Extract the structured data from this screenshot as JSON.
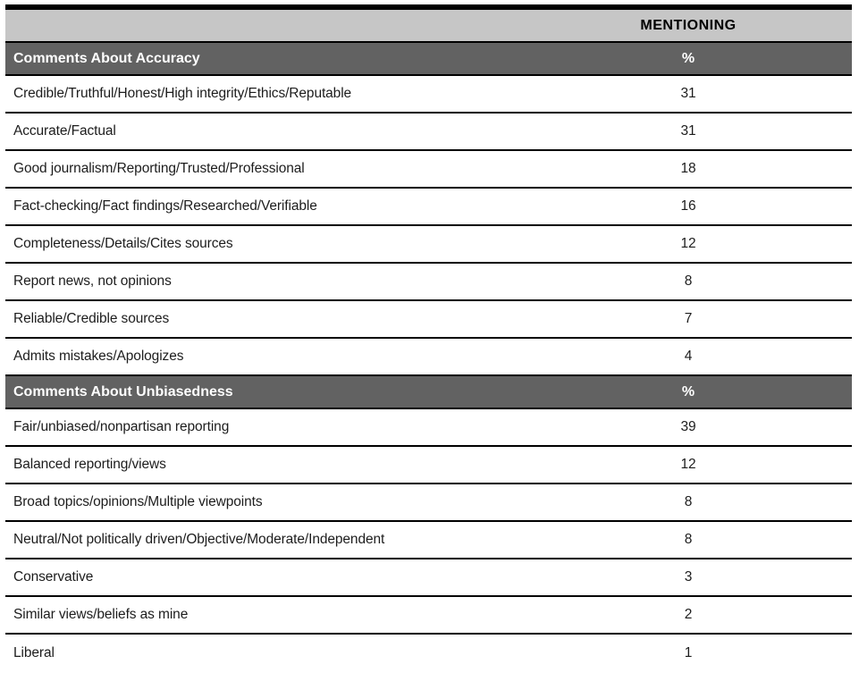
{
  "colors": {
    "light_band_bg": "#c6c6c6",
    "dark_band_bg": "#626262",
    "rule_color": "#000000",
    "row_text": "#1d1d1d",
    "header_text_on_dark": "#ffffff"
  },
  "chart_data": {
    "type": "table",
    "column_header": "MENTIONING",
    "value_unit": "%",
    "layout": {
      "top_border": "thick black",
      "row_separators": "thin black full-width rules",
      "value_column_alignment": "center"
    },
    "sections": [
      {
        "title": "Comments About Accuracy",
        "unit_label": "%",
        "rows": [
          {
            "label": "Credible/Truthful/Honest/High integrity/Ethics/Reputable",
            "value": 31
          },
          {
            "label": "Accurate/Factual",
            "value": 31
          },
          {
            "label": "Good journalism/Reporting/Trusted/Professional",
            "value": 18
          },
          {
            "label": "Fact-checking/Fact findings/Researched/Verifiable",
            "value": 16
          },
          {
            "label": "Completeness/Details/Cites sources",
            "value": 12
          },
          {
            "label": "Report news, not opinions",
            "value": 8
          },
          {
            "label": "Reliable/Credible sources",
            "value": 7
          },
          {
            "label": "Admits mistakes/Apologizes",
            "value": 4
          }
        ]
      },
      {
        "title": "Comments About Unbiasedness",
        "unit_label": "%",
        "rows": [
          {
            "label": "Fair/unbiased/nonpartisan reporting",
            "value": 39
          },
          {
            "label": "Balanced reporting/views",
            "value": 12
          },
          {
            "label": "Broad topics/opinions/Multiple viewpoints",
            "value": 8
          },
          {
            "label": "Neutral/Not politically driven/Objective/Moderate/Independent",
            "value": 8
          },
          {
            "label": "Conservative",
            "value": 3
          },
          {
            "label": "Similar views/beliefs as mine",
            "value": 2
          },
          {
            "label": "Liberal",
            "value": 1
          }
        ]
      }
    ]
  }
}
